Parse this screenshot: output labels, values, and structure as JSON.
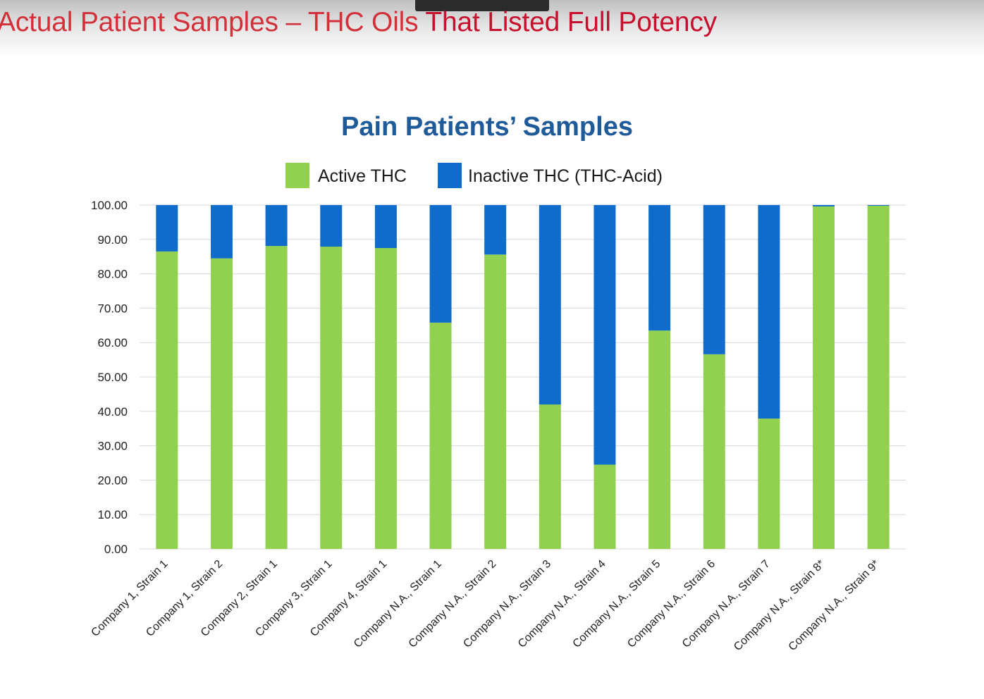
{
  "slide": {
    "title_part1": "Actual Patient Samples – THC Oils ",
    "title_part2": "That Listed Full Potency"
  },
  "chart_data": {
    "type": "bar",
    "stacked": true,
    "title": "Pain Patients’ Samples",
    "categories": [
      "Company 1, Strain 1",
      "Company 1, Strain 2",
      "Company 2, Strain 1",
      "Company 3, Strain 1",
      "Company 4, Strain 1",
      "Company N.A., Strain 1",
      "Company N.A., Strain 2",
      "Company N.A., Strain 3",
      "Company N.A., Strain 4",
      "Company N.A., Strain 5",
      "Company N.A., Strain 6",
      "Company N.A., Strain 7",
      "Company N.A., Strain 8*",
      "Company N.A., Strain 9*"
    ],
    "series": [
      {
        "name": "Active THC",
        "color": "#92d050",
        "values": [
          86.5,
          84.5,
          88.1,
          87.9,
          87.5,
          65.8,
          85.6,
          42.0,
          24.5,
          63.5,
          56.6,
          37.9,
          99.6,
          99.8
        ]
      },
      {
        "name": "Inactive THC (THC-Acid)",
        "color": "#106ccb",
        "values": [
          13.5,
          15.5,
          11.9,
          12.1,
          12.5,
          34.2,
          14.4,
          58.0,
          75.5,
          36.5,
          43.4,
          62.1,
          0.4,
          0.2
        ]
      }
    ],
    "ylim": [
      0,
      100
    ],
    "yticks": [
      "0.00",
      "10.00",
      "20.00",
      "30.00",
      "40.00",
      "50.00",
      "60.00",
      "70.00",
      "80.00",
      "90.00",
      "100.00"
    ],
    "grid": true,
    "legend": "top-center"
  }
}
